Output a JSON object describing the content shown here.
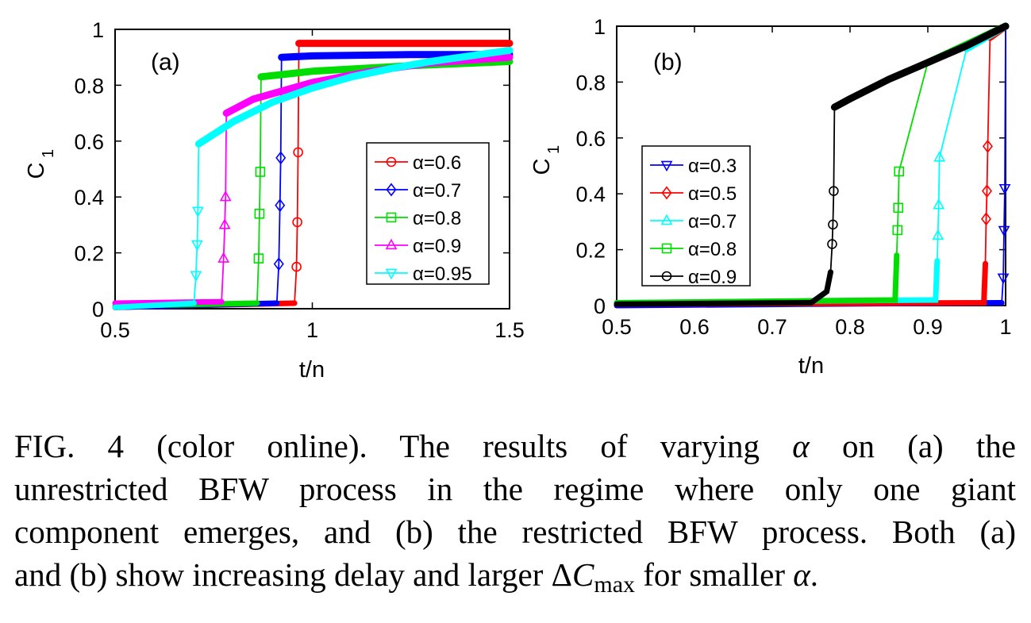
{
  "chart_data": [
    {
      "type": "line",
      "panel_label": "(a)",
      "xlabel": "t/n",
      "ylabel_main": "C",
      "ylabel_sub": "1",
      "xlim": [
        0.5,
        1.5
      ],
      "ylim": [
        0,
        1
      ],
      "xticks": [
        "0.5",
        "1",
        "1.5"
      ],
      "yticks": [
        "0",
        "0.2",
        "0.4",
        "0.6",
        "0.8",
        "1"
      ],
      "legend_position": "center-right",
      "grid": false,
      "series": [
        {
          "name": "α=0.6",
          "color": "#ff0000",
          "marker": "circle",
          "x": [
            0.5,
            0.955,
            0.96,
            0.962,
            0.964,
            0.966,
            1.0,
            1.25,
            1.5
          ],
          "y": [
            0.005,
            0.02,
            0.15,
            0.31,
            0.56,
            0.95,
            0.95,
            0.95,
            0.95
          ]
        },
        {
          "name": "α=0.7",
          "color": "#0000ff",
          "marker": "diamond",
          "x": [
            0.5,
            0.91,
            0.915,
            0.918,
            0.92,
            0.922,
            1.0,
            1.25,
            1.5
          ],
          "y": [
            0.005,
            0.02,
            0.16,
            0.37,
            0.54,
            0.9,
            0.905,
            0.91,
            0.91
          ]
        },
        {
          "name": "α=0.8",
          "color": "#00dd00",
          "marker": "square",
          "x": [
            0.5,
            0.86,
            0.864,
            0.866,
            0.868,
            0.87,
            1.0,
            1.25,
            1.5
          ],
          "y": [
            0.01,
            0.02,
            0.18,
            0.34,
            0.49,
            0.83,
            0.85,
            0.87,
            0.885
          ]
        },
        {
          "name": "α=0.9",
          "color": "#ff00ff",
          "marker": "triangle-up",
          "x": [
            0.5,
            0.77,
            0.775,
            0.778,
            0.78,
            0.782,
            0.85,
            1.0,
            1.15,
            1.3,
            1.5
          ],
          "y": [
            0.02,
            0.025,
            0.18,
            0.3,
            0.4,
            0.7,
            0.75,
            0.81,
            0.85,
            0.88,
            0.9
          ]
        },
        {
          "name": "α=0.95",
          "color": "#00ffff",
          "marker": "triangle-down",
          "x": [
            0.5,
            0.7,
            0.705,
            0.708,
            0.71,
            0.712,
            0.8,
            0.9,
            1.0,
            1.1,
            1.2,
            1.3,
            1.4,
            1.5
          ],
          "y": [
            0.005,
            0.02,
            0.12,
            0.23,
            0.35,
            0.59,
            0.67,
            0.74,
            0.79,
            0.83,
            0.86,
            0.885,
            0.905,
            0.925
          ]
        }
      ]
    },
    {
      "type": "line",
      "panel_label": "(b)",
      "xlabel": "t/n",
      "ylabel_main": "C",
      "ylabel_sub": "1",
      "xlim": [
        0.5,
        1
      ],
      "ylim": [
        0,
        1
      ],
      "xticks": [
        "0.5",
        "0.6",
        "0.7",
        "0.8",
        "0.9",
        "1"
      ],
      "yticks": [
        "0",
        "0.2",
        "0.4",
        "0.6",
        "0.8",
        "1"
      ],
      "legend_position": "center-left",
      "grid": false,
      "series": [
        {
          "name": "α=0.3",
          "color": "#0000ff",
          "marker": "triangle-down",
          "x": [
            0.5,
            0.995,
            0.997,
            0.998,
            0.999,
            1.0
          ],
          "y": [
            0.0,
            0.01,
            0.1,
            0.27,
            0.42,
            1.0
          ]
        },
        {
          "name": "α=0.5",
          "color": "#ff0000",
          "marker": "diamond",
          "x": [
            0.5,
            0.972,
            0.974,
            0.975,
            0.976,
            0.977,
            0.98,
            1.0
          ],
          "y": [
            0.005,
            0.01,
            0.15,
            0.31,
            0.41,
            0.57,
            0.96,
            1.0
          ]
        },
        {
          "name": "α=0.7",
          "color": "#00ffff",
          "marker": "triangle-up",
          "x": [
            0.5,
            0.91,
            0.912,
            0.913,
            0.914,
            0.915,
            0.95,
            1.0
          ],
          "y": [
            0.01,
            0.02,
            0.16,
            0.25,
            0.36,
            0.53,
            0.92,
            1.0
          ]
        },
        {
          "name": "α=0.8",
          "color": "#00dd00",
          "marker": "square",
          "x": [
            0.5,
            0.858,
            0.86,
            0.861,
            0.862,
            0.863,
            0.9,
            1.0
          ],
          "y": [
            0.01,
            0.02,
            0.18,
            0.27,
            0.35,
            0.48,
            0.87,
            1.0
          ]
        },
        {
          "name": "α=0.9",
          "color": "#000000",
          "marker": "circle",
          "x": [
            0.5,
            0.75,
            0.77,
            0.775,
            0.777,
            0.778,
            0.779,
            0.78,
            0.8,
            0.85,
            0.9,
            0.95,
            1.0
          ],
          "y": [
            0.005,
            0.01,
            0.05,
            0.12,
            0.22,
            0.29,
            0.41,
            0.71,
            0.74,
            0.81,
            0.87,
            0.93,
            1.0
          ]
        }
      ]
    }
  ],
  "caption": {
    "line1_a": "FIG. 4 (color online).  The results of varying ",
    "alpha": "α",
    "line1_b": " on (a) the",
    "line2": "unrestricted BFW process in the regime where only one giant",
    "line3": "component emerges, and (b) the restricted BFW process. Both (a)",
    "line4_a": "and (b) show increasing delay and larger Δ",
    "cmax_c": "C",
    "cmax_sub": "max",
    "line4_b": " for smaller ",
    "line4_end": "."
  }
}
